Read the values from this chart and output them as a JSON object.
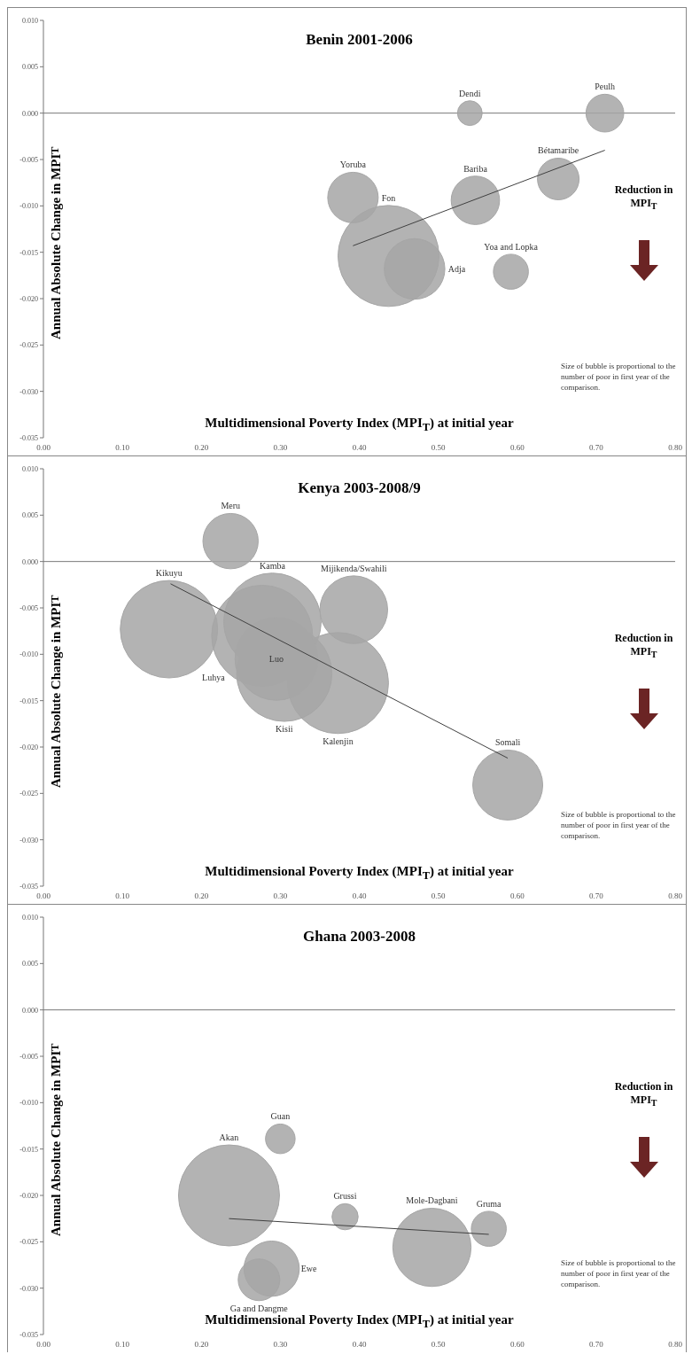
{
  "chart_data": [
    {
      "type": "bubble",
      "title": "Benin 2001-2006",
      "xlabel": "Multidimensional Poverty Index (MPI$_{T}$) at initial year",
      "ylabel": "Annual Absolute Change in MPI$_{T}$",
      "annotations": [
        "Reduction in MPI$_{T}$",
        "Size of bubble is proportional to the number of poor in first year of the comparison."
      ],
      "xlim": [
        0,
        0.8
      ],
      "xticks": [
        {
          "value": 0,
          "label": "0.00"
        },
        {
          "value": 0.1,
          "label": "0.10"
        },
        {
          "value": 0.2,
          "label": "0.20"
        },
        {
          "value": 0.3,
          "label": "0.30"
        },
        {
          "value": 0.4,
          "label": "0.40"
        },
        {
          "value": 0.5,
          "label": "0.50"
        },
        {
          "value": 0.6,
          "label": "0.60"
        },
        {
          "value": 0.7,
          "label": "0.70"
        },
        {
          "value": 0.8,
          "label": "0.80"
        }
      ],
      "ylim": [
        -0.035,
        0.01
      ],
      "yticks": [
        {
          "value": 0.01,
          "label": "0.010"
        },
        0.005,
        {
          "value": 0,
          "label": "0.000"
        },
        -0.005,
        {
          "value": -0.01,
          "label": "-0.010"
        },
        -0.015,
        {
          "value": -0.02,
          "label": "-0.020"
        },
        -0.025,
        {
          "value": -0.03,
          "label": "-0.030"
        },
        -0.035
      ],
      "series": [
        {
          "name": "Fon",
          "color": "#a6a6a6",
          "x": [
            0.437
          ],
          "values": [
            -0.0154
          ],
          "sizes": [
            1
          ]
        },
        {
          "name": "Adja",
          "color": "#a6a6a6",
          "x": [
            0.47
          ],
          "values": [
            -0.0168
          ],
          "sizes": [
            0.36
          ]
        },
        {
          "name": "Yoruba",
          "color": "#a6a6a6",
          "x": [
            0.392
          ],
          "values": [
            -0.0091
          ],
          "sizes": [
            0.25
          ]
        },
        {
          "name": "Bariba",
          "color": "#a6a6a6",
          "x": [
            0.547
          ],
          "values": [
            -0.0094
          ],
          "sizes": [
            0.23
          ]
        },
        {
          "name": "Bétamaribe",
          "color": "#a6a6a6",
          "x": [
            0.652
          ],
          "values": [
            -0.0071
          ],
          "sizes": [
            0.17
          ]
        },
        {
          "name": "Peulh",
          "color": "#a6a6a6",
          "x": [
            0.711
          ],
          "values": [
            0
          ],
          "sizes": [
            0.14
          ]
        },
        {
          "name": "Yoa and Lopka",
          "color": "#a6a6a6",
          "x": [
            0.592
          ],
          "values": [
            -0.0171
          ],
          "sizes": [
            0.12
          ]
        },
        {
          "name": "Dendi",
          "color": "#a6a6a6",
          "x": [
            0.54
          ],
          "values": [
            0
          ],
          "sizes": [
            0.06
          ]
        },
        {
          "type": "line",
          "color": "#404040",
          "x": [
            0.392,
            0.711
          ],
          "values": [
            -0.0143,
            -0.004
          ]
        }
      ]
    },
    {
      "type": "bubble",
      "title": "Kenya 2003-2008/9",
      "xlabel": "Multidimensional Poverty Index (MPI$_{T}$) at initial year",
      "ylabel": "Annual Absolute Change in MPI$_{T}$",
      "annotations": [
        "Reduction in MPI$_{T}$",
        "Size of bubble is proportional to the number of poor in first year of the comparison."
      ],
      "xlim": [
        0,
        0.8
      ],
      "xticks": [
        {
          "value": 0,
          "label": "0.00"
        },
        {
          "value": 0.1,
          "label": "0.10"
        },
        {
          "value": 0.2,
          "label": "0.20"
        },
        {
          "value": 0.3,
          "label": "0.30"
        },
        {
          "value": 0.4,
          "label": "0.40"
        },
        {
          "value": 0.5,
          "label": "0.50"
        },
        {
          "value": 0.6,
          "label": "0.60"
        },
        {
          "value": 0.7,
          "label": "0.70"
        },
        {
          "value": 0.8,
          "label": "0.80"
        }
      ],
      "ylim": [
        -0.035,
        0.01
      ],
      "yticks": [
        {
          "value": 0.01,
          "label": "0.010"
        },
        0.005,
        {
          "value": 0,
          "label": "0.000"
        },
        -0.005,
        {
          "value": -0.01,
          "label": "-0.010"
        },
        -0.015,
        {
          "value": -0.02,
          "label": "-0.020"
        },
        -0.025,
        {
          "value": -0.03,
          "label": "-0.030"
        },
        -0.035
      ],
      "series": [
        {
          "name": "Kikuyu",
          "color": "#a6a6a6",
          "x": [
            0.159
          ],
          "values": [
            -0.0073
          ],
          "sizes": [
            0.93
          ]
        },
        {
          "name": "Luhya",
          "color": "#a6a6a6",
          "x": [
            0.277
          ],
          "values": [
            -0.008
          ],
          "sizes": [
            1
          ]
        },
        {
          "name": "Kamba",
          "color": "#a6a6a6",
          "x": [
            0.29
          ],
          "values": [
            -0.0065
          ],
          "sizes": [
            0.93
          ]
        },
        {
          "name": "Kalenjin",
          "color": "#a6a6a6",
          "x": [
            0.373
          ],
          "values": [
            -0.0131
          ],
          "sizes": [
            1
          ]
        },
        {
          "name": "Kisii",
          "color": "#a6a6a6",
          "x": [
            0.305
          ],
          "values": [
            -0.0121
          ],
          "sizes": [
            0.89
          ]
        },
        {
          "name": "Luo",
          "color": "#a6a6a6",
          "x": [
            0.295
          ],
          "values": [
            -0.0105
          ],
          "sizes": [
            0.67
          ]
        },
        {
          "name": "Mijikenda/Swahili",
          "color": "#a6a6a6",
          "x": [
            0.393
          ],
          "values": [
            -0.0052
          ],
          "sizes": [
            0.45
          ]
        },
        {
          "name": "Meru",
          "color": "#a6a6a6",
          "x": [
            0.237
          ],
          "values": [
            0.0022
          ],
          "sizes": [
            0.3
          ]
        },
        {
          "name": "Somali",
          "color": "#a6a6a6",
          "x": [
            0.588
          ],
          "values": [
            -0.0241
          ],
          "sizes": [
            0.48
          ]
        },
        {
          "type": "line",
          "color": "#404040",
          "x": [
            0.161,
            0.588
          ],
          "values": [
            -0.0024,
            -0.0212
          ]
        }
      ]
    },
    {
      "type": "bubble",
      "title": "Ghana 2003-2008",
      "xlabel": "Multidimensional Poverty Index (MPI$_{T}$) at initial year",
      "ylabel": "Annual Absolute Change in MPI$_{T}$",
      "annotations": [
        "Reduction in MPI$_{T}$",
        "Size of bubble is proportional to the number of poor in first year of the comparison."
      ],
      "xlim": [
        0,
        0.8
      ],
      "xticks": [
        {
          "value": 0,
          "label": "0.00"
        },
        {
          "value": 0.1,
          "label": "0.10"
        },
        {
          "value": 0.2,
          "label": "0.20"
        },
        {
          "value": 0.3,
          "label": "0.30"
        },
        {
          "value": 0.4,
          "label": "0.40"
        },
        {
          "value": 0.5,
          "label": "0.50"
        },
        {
          "value": 0.6,
          "label": "0.60"
        },
        {
          "value": 0.7,
          "label": "0.70"
        },
        {
          "value": 0.8,
          "label": "0.80"
        }
      ],
      "ylim": [
        -0.035,
        0.01
      ],
      "yticks": [
        {
          "value": 0.01,
          "label": "0.010"
        },
        0.005,
        {
          "value": 0,
          "label": "0.000"
        },
        -0.005,
        {
          "value": -0.01,
          "label": "-0.010"
        },
        -0.015,
        {
          "value": -0.02,
          "label": "-0.020"
        },
        -0.025,
        {
          "value": -0.03,
          "label": "-0.030"
        },
        -0.035
      ],
      "series": [
        {
          "name": "Akan",
          "color": "#a6a6a6",
          "x": [
            0.235
          ],
          "values": [
            -0.02
          ],
          "sizes": [
            1
          ]
        },
        {
          "name": "Mole-Dagbani",
          "color": "#a6a6a6",
          "x": [
            0.492
          ],
          "values": [
            -0.0256
          ],
          "sizes": [
            0.6
          ]
        },
        {
          "name": "Ewe",
          "color": "#a6a6a6",
          "x": [
            0.289
          ],
          "values": [
            -0.0279
          ],
          "sizes": [
            0.3
          ]
        },
        {
          "name": "Ga and Dangme",
          "color": "#a6a6a6",
          "x": [
            0.273
          ],
          "values": [
            -0.0291
          ],
          "sizes": [
            0.17
          ]
        },
        {
          "name": "Gruma",
          "color": "#a6a6a6",
          "x": [
            0.564
          ],
          "values": [
            -0.0236
          ],
          "sizes": [
            0.12
          ]
        },
        {
          "name": "Guan",
          "color": "#a6a6a6",
          "x": [
            0.3
          ],
          "values": [
            -0.0139
          ],
          "sizes": [
            0.086
          ]
        },
        {
          "name": "Grussi",
          "color": "#a6a6a6",
          "x": [
            0.382
          ],
          "values": [
            -0.0223
          ],
          "sizes": [
            0.067
          ]
        },
        {
          "type": "line",
          "color": "#404040",
          "x": [
            0.235,
            0.564
          ],
          "values": [
            -0.0225,
            -0.0242
          ]
        }
      ]
    }
  ]
}
